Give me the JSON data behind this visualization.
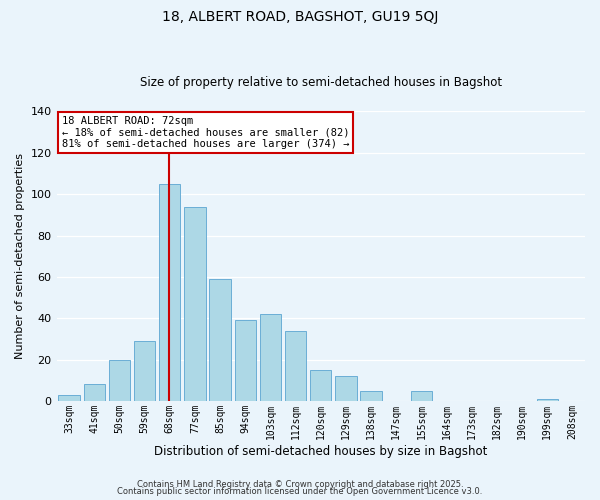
{
  "title1": "18, ALBERT ROAD, BAGSHOT, GU19 5QJ",
  "title2": "Size of property relative to semi-detached houses in Bagshot",
  "xlabel": "Distribution of semi-detached houses by size in Bagshot",
  "ylabel": "Number of semi-detached properties",
  "bar_labels": [
    "33sqm",
    "41sqm",
    "50sqm",
    "59sqm",
    "68sqm",
    "77sqm",
    "85sqm",
    "94sqm",
    "103sqm",
    "112sqm",
    "120sqm",
    "129sqm",
    "138sqm",
    "147sqm",
    "155sqm",
    "164sqm",
    "173sqm",
    "182sqm",
    "190sqm",
    "199sqm",
    "208sqm"
  ],
  "bar_values": [
    3,
    8,
    20,
    29,
    105,
    94,
    59,
    39,
    42,
    34,
    15,
    12,
    5,
    0,
    5,
    0,
    0,
    0,
    0,
    1,
    0
  ],
  "bar_color": "#add8e6",
  "bar_edge_color": "#6baed6",
  "vline_color": "#cc0000",
  "annotation_title": "18 ALBERT ROAD: 72sqm",
  "annotation_line1": "← 18% of semi-detached houses are smaller (82)",
  "annotation_line2": "81% of semi-detached houses are larger (374) →",
  "annotation_box_color": "#ffffff",
  "annotation_box_edge": "#cc0000",
  "ylim": [
    0,
    140
  ],
  "yticks": [
    0,
    20,
    40,
    60,
    80,
    100,
    120,
    140
  ],
  "footer1": "Contains HM Land Registry data © Crown copyright and database right 2025.",
  "footer2": "Contains public sector information licensed under the Open Government Licence v3.0.",
  "background_color": "#eaf4fb",
  "grid_color": "#ffffff"
}
